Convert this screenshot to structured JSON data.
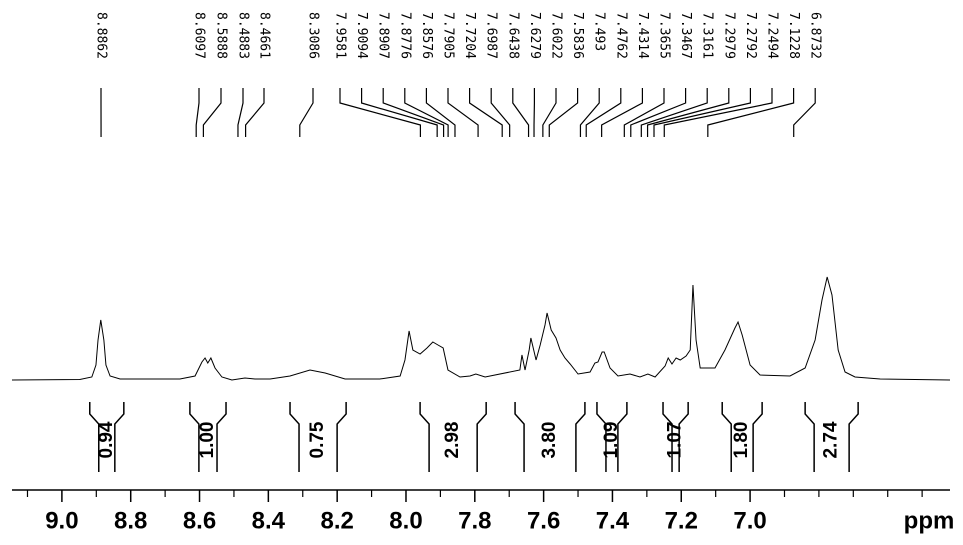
{
  "chart_data": {
    "type": "nmr",
    "x_label": "ppm",
    "xlim": [
      9.145,
      6.419
    ],
    "ylim": [
      0,
      110
    ],
    "xticks": [
      {
        "value": 9,
        "label": "9.0"
      },
      8.8,
      8.6,
      8.4,
      8.2,
      {
        "value": 8,
        "label": "8.0"
      },
      7.8,
      7.6,
      7.4,
      7.2,
      {
        "value": 7,
        "label": "7.0"
      }
    ],
    "minor_xticks": [
      9.1,
      8.9,
      8.7,
      8.5,
      8.3,
      8.1,
      7.9,
      7.7,
      7.5,
      7.3,
      7.1,
      6.9,
      6.8,
      6.7,
      6.6,
      6.5
    ],
    "spectrum": {
      "color": "#000000",
      "x": [
        9.145,
        8.948,
        8.913,
        8.901,
        8.895,
        8.887,
        8.878,
        8.872,
        8.86,
        8.831,
        8.657,
        8.613,
        8.593,
        8.584,
        8.576,
        8.567,
        8.555,
        8.535,
        8.506,
        8.468,
        8.439,
        8.395,
        8.337,
        8.279,
        8.235,
        8.177,
        8.076,
        8.017,
        8.003,
        7.991,
        7.98,
        7.959,
        7.939,
        7.922,
        7.907,
        7.892,
        7.878,
        7.843,
        7.814,
        7.797,
        7.77,
        7.669,
        7.663,
        7.654,
        7.642,
        7.637,
        7.622,
        7.61,
        7.596,
        7.59,
        7.578,
        7.564,
        7.552,
        7.538,
        7.523,
        7.5,
        7.465,
        7.451,
        7.442,
        7.43,
        7.424,
        7.407,
        7.384,
        7.349,
        7.32,
        7.297,
        7.276,
        7.247,
        7.238,
        7.227,
        7.215,
        7.203,
        7.186,
        7.174,
        7.166,
        7.157,
        7.145,
        7.102,
        7.073,
        7.044,
        7.035,
        7.023,
        7.0,
        6.971,
        6.884,
        6.84,
        6.811,
        6.791,
        6.776,
        6.762,
        6.744,
        6.724,
        6.695,
        6.622,
        6.419
      ],
      "y": [
        0,
        0.5,
        3,
        15,
        40,
        60,
        40,
        15,
        4,
        1,
        1,
        4,
        18,
        22,
        17,
        22,
        12,
        3,
        0,
        2,
        1,
        1,
        4,
        10,
        7,
        1,
        1,
        4,
        20,
        49,
        30,
        26,
        32,
        38,
        35,
        32,
        10,
        3,
        4,
        6,
        3,
        10,
        25,
        10,
        30,
        42,
        20,
        35,
        55,
        67,
        50,
        42,
        30,
        22,
        16,
        6,
        8,
        17,
        18,
        28,
        28,
        12,
        4,
        6,
        3,
        6,
        3,
        14,
        22,
        16,
        22,
        20,
        24,
        30,
        95,
        40,
        12,
        12,
        30,
        52,
        58,
        45,
        15,
        5,
        4,
        12,
        40,
        80,
        103,
        85,
        30,
        8,
        3,
        1,
        0
      ]
    },
    "peaks": [
      8.8862,
      8.6097,
      8.5888,
      8.4883,
      8.4661,
      8.3086,
      7.9581,
      7.9094,
      7.8907,
      7.8776,
      7.8576,
      7.7905,
      7.7204,
      7.6987,
      7.6438,
      7.6279,
      7.6022,
      7.5836,
      7.493,
      7.4762,
      7.4314,
      7.3655,
      7.3467,
      7.3161,
      7.2979,
      7.2792,
      7.2494,
      7.1228,
      6.8732
    ],
    "integrals": {
      "ranges": [
        [
          8.919,
          8.82
        ],
        [
          8.628,
          8.523
        ],
        [
          8.337,
          8.174
        ],
        [
          7.959,
          7.767
        ],
        [
          7.683,
          7.48
        ],
        [
          7.445,
          7.358
        ],
        [
          7.253,
          7.18
        ],
        [
          7.081,
          6.965
        ],
        [
          6.84,
          6.686
        ]
      ],
      "values": [
        0.94,
        1,
        0.75,
        2.98,
        3.8,
        1.09,
        1.07,
        1.8,
        2.74
      ],
      "value_labels": [
        "0.94",
        "1.00",
        "0.75",
        "2.98",
        "3.80",
        "1.09",
        "1.07",
        "1.80",
        "2.74"
      ]
    }
  }
}
